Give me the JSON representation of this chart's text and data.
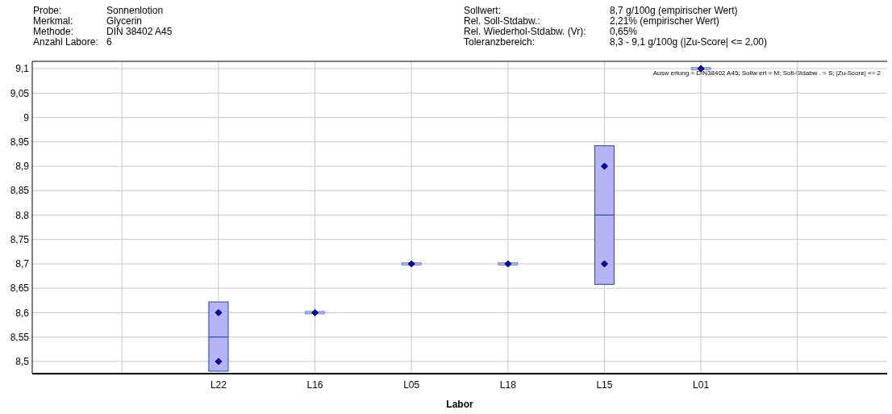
{
  "chart_data": {
    "type": "box",
    "xlabel": "Labor",
    "annotations": [
      "Probe:",
      "Sonnenlotion",
      "Merkmal:",
      "Glycerin",
      "Methode:",
      "DIN 38402 A45",
      "Anzahl Labore:",
      "6",
      "Sollwert:",
      "8,7 g/100g (empirischer Wert)",
      "Rel. Soll-Stdabw.:",
      "2,21% (empirischer Wert)",
      "Rel. Wiederhol-Stdabw. (Vr):",
      "0,65%",
      "Toleranzbereich:",
      "8,3 - 9,1 g/100g (|Zu-Score| <= 2,00)",
      "Ausw ertung = DIN38402 A45; Sollw ert = M; Soll-Stdabw . = S; |Zu-Score| <= 2"
    ],
    "categories": [
      null,
      "L22",
      "L16",
      "L05",
      "L18",
      "L15",
      "L01",
      null
    ],
    "ylim": [
      8.475,
      9.115
    ],
    "yticks": [
      {
        "value": 8.5,
        "label": "8,5"
      },
      {
        "value": 8.55,
        "label": "8,55"
      },
      {
        "value": 8.6,
        "label": "8,6"
      },
      {
        "value": 8.65,
        "label": "8,65"
      },
      {
        "value": 8.7,
        "label": "8,7"
      },
      {
        "value": 8.75,
        "label": "8,75"
      },
      {
        "value": 8.8,
        "label": "8,8"
      },
      {
        "value": 8.85,
        "label": "8,85"
      },
      {
        "value": 8.9,
        "label": "8,9"
      },
      {
        "value": 8.95,
        "label": "8,95"
      },
      {
        "value": 9,
        "label": "9"
      },
      {
        "value": 9.05,
        "label": "9,05"
      },
      {
        "value": 9.1,
        "label": "9,1"
      }
    ],
    "grid": true,
    "marker": "diamond",
    "series": [
      {
        "color": "#b4b4f8",
        "boxes": [
          null,
          {
            "low": 8.48,
            "q1": 8.48,
            "median": 8.55,
            "q3": 8.622,
            "high": 8.622
          },
          {
            "low": 8.6,
            "q1": 8.6,
            "median": 8.6,
            "q3": 8.6,
            "high": 8.6
          },
          {
            "low": 8.7,
            "q1": 8.7,
            "median": 8.7,
            "q3": 8.7,
            "high": 8.7
          },
          {
            "low": 8.7,
            "q1": 8.7,
            "median": 8.7,
            "q3": 8.7,
            "high": 8.7
          },
          {
            "low": 8.658,
            "q1": 8.658,
            "median": 8.8,
            "q3": 8.942,
            "high": 8.942
          },
          {
            "low": 9.1,
            "q1": 9.1,
            "median": 9.1,
            "q3": 9.1,
            "high": 9.1
          },
          null
        ]
      },
      {
        "type": "scatter",
        "color": "#0000cc",
        "x": [
          "L22",
          "L22",
          "L16",
          "L05",
          "L18",
          "L15",
          "L15",
          "L01"
        ],
        "values": [
          8.5,
          8.6,
          8.6,
          8.7,
          8.7,
          8.7,
          8.9,
          9.1
        ]
      }
    ]
  }
}
